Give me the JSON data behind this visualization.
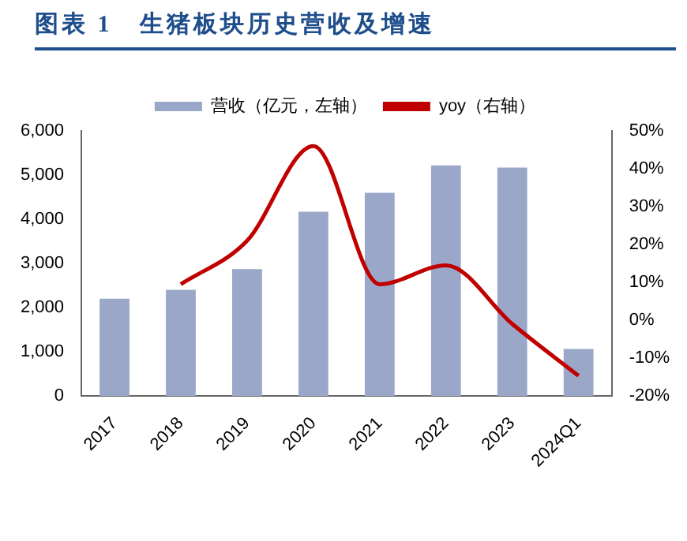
{
  "chart_data": {
    "type": "bar",
    "title": "图表 1　生猪板块历史营收及增速",
    "categories": [
      "2017",
      "2018",
      "2019",
      "2020",
      "2021",
      "2022",
      "2023",
      "2024Q1"
    ],
    "series": [
      {
        "name": "营收（亿元，左轴）",
        "color": "#9aa7c8",
        "values": [
          2200,
          2400,
          2870,
          4170,
          4600,
          5220,
          5170,
          1060
        ]
      },
      {
        "name": "yoy（右轴）",
        "type": "line",
        "axis": "y2",
        "color": "#c00000",
        "values": [
          null,
          9.5,
          21,
          46,
          9.5,
          14.5,
          -1,
          -14.7
        ]
      }
    ],
    "ylim": [
      0,
      6000
    ],
    "yticks": [
      0,
      {
        "value": 1000,
        "label": "1,000"
      },
      {
        "value": 2000,
        "label": "2,000"
      },
      {
        "value": 3000,
        "label": "3,000"
      },
      {
        "value": 4000,
        "label": "4,000"
      },
      {
        "value": 5000,
        "label": "5,000"
      },
      {
        "value": 6000,
        "label": "6,000"
      }
    ],
    "y2lim": [
      -20,
      50
    ],
    "y2ticks": [
      {
        "value": -20,
        "label": "-20%"
      },
      {
        "value": -10,
        "label": "-10%"
      },
      {
        "value": 0,
        "label": "0%"
      },
      {
        "value": 10,
        "label": "10%"
      },
      {
        "value": 20,
        "label": "20%"
      },
      {
        "value": 30,
        "label": "30%"
      },
      {
        "value": 40,
        "label": "40%"
      },
      {
        "value": 50,
        "label": "50%"
      }
    ],
    "grid": false,
    "legend": "top",
    "marker": "none",
    "line_style": "solid"
  }
}
